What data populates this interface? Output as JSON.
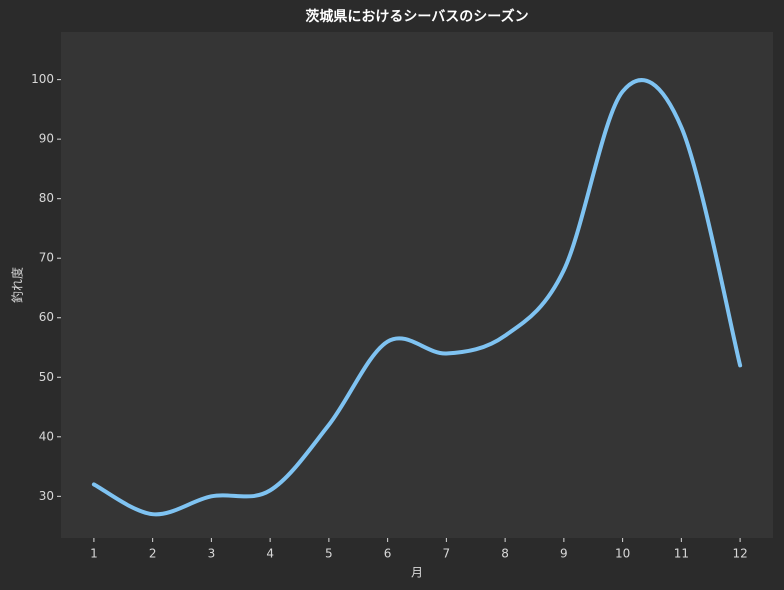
{
  "chart_data": {
    "type": "line",
    "title": "茨城県におけるシーバスのシーズン",
    "x_label": "月",
    "y_label": "釣れ度",
    "x": [
      1,
      2,
      3,
      4,
      5,
      6,
      7,
      8,
      9,
      10,
      11,
      12
    ],
    "series": [
      {
        "color": "#7fc3f2",
        "values": [
          32,
          27,
          30,
          31,
          42,
          56,
          54,
          57,
          68,
          98,
          92,
          52
        ]
      }
    ],
    "xlim": [
      0.44,
      12.56
    ],
    "ylim": [
      23,
      108
    ],
    "xticks": [
      1,
      2,
      3,
      4,
      5,
      6,
      7,
      8,
      9,
      10,
      11,
      12
    ],
    "yticks": [
      30,
      40,
      50,
      60,
      70,
      80,
      90,
      100
    ],
    "smooth": true
  }
}
